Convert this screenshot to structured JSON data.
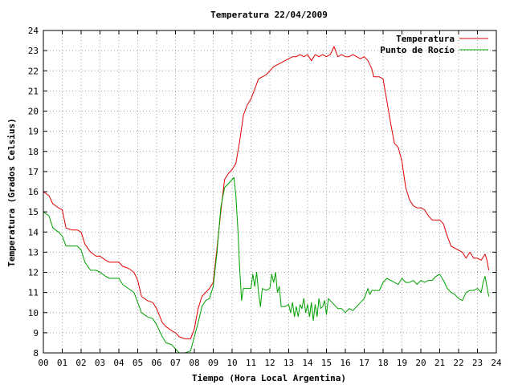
{
  "chart_data": {
    "type": "line",
    "title": "Temperatura 22/04/2009",
    "xlabel": "Tiempo (Hora Local Argentina)",
    "ylabel": "Temperatura (Grados Celsius)",
    "xlim": [
      0,
      24
    ],
    "ylim": [
      8,
      24
    ],
    "x_ticks": [
      "00",
      "01",
      "02",
      "03",
      "04",
      "05",
      "06",
      "07",
      "08",
      "09",
      "10",
      "11",
      "12",
      "13",
      "14",
      "15",
      "16",
      "17",
      "18",
      "19",
      "20",
      "21",
      "22",
      "23",
      "24"
    ],
    "y_ticks": [
      8,
      9,
      10,
      11,
      12,
      13,
      14,
      15,
      16,
      17,
      18,
      19,
      20,
      21,
      22,
      23,
      24
    ],
    "grid": true,
    "legend_position": "top-right",
    "series": [
      {
        "name": "Temperatura",
        "color": "#e00000",
        "points": [
          [
            0.0,
            16.0
          ],
          [
            0.3,
            15.8
          ],
          [
            0.5,
            15.4
          ],
          [
            0.8,
            15.2
          ],
          [
            1.0,
            15.1
          ],
          [
            1.2,
            14.2
          ],
          [
            1.5,
            14.1
          ],
          [
            1.8,
            14.1
          ],
          [
            2.0,
            14.0
          ],
          [
            2.2,
            13.4
          ],
          [
            2.5,
            13.0
          ],
          [
            2.8,
            12.8
          ],
          [
            3.0,
            12.8
          ],
          [
            3.3,
            12.6
          ],
          [
            3.5,
            12.5
          ],
          [
            3.8,
            12.5
          ],
          [
            4.0,
            12.5
          ],
          [
            4.2,
            12.3
          ],
          [
            4.5,
            12.2
          ],
          [
            4.8,
            12.0
          ],
          [
            5.0,
            11.6
          ],
          [
            5.2,
            10.8
          ],
          [
            5.5,
            10.6
          ],
          [
            5.8,
            10.5
          ],
          [
            6.0,
            10.2
          ],
          [
            6.3,
            9.5
          ],
          [
            6.5,
            9.3
          ],
          [
            6.8,
            9.1
          ],
          [
            7.0,
            9.0
          ],
          [
            7.2,
            8.8
          ],
          [
            7.5,
            8.7
          ],
          [
            7.8,
            8.7
          ],
          [
            8.0,
            9.2
          ],
          [
            8.2,
            10.2
          ],
          [
            8.4,
            10.8
          ],
          [
            8.6,
            11.0
          ],
          [
            8.8,
            11.2
          ],
          [
            9.0,
            11.5
          ],
          [
            9.2,
            13.2
          ],
          [
            9.4,
            15.0
          ],
          [
            9.6,
            16.6
          ],
          [
            9.8,
            16.9
          ],
          [
            10.0,
            17.1
          ],
          [
            10.2,
            17.4
          ],
          [
            10.4,
            18.5
          ],
          [
            10.6,
            19.8
          ],
          [
            10.8,
            20.3
          ],
          [
            11.0,
            20.6
          ],
          [
            11.2,
            21.1
          ],
          [
            11.4,
            21.6
          ],
          [
            11.6,
            21.7
          ],
          [
            11.8,
            21.8
          ],
          [
            12.0,
            22.0
          ],
          [
            12.2,
            22.2
          ],
          [
            12.4,
            22.3
          ],
          [
            12.6,
            22.4
          ],
          [
            12.8,
            22.5
          ],
          [
            13.0,
            22.6
          ],
          [
            13.2,
            22.7
          ],
          [
            13.4,
            22.7
          ],
          [
            13.6,
            22.8
          ],
          [
            13.8,
            22.7
          ],
          [
            14.0,
            22.8
          ],
          [
            14.2,
            22.5
          ],
          [
            14.4,
            22.8
          ],
          [
            14.6,
            22.7
          ],
          [
            14.8,
            22.8
          ],
          [
            15.0,
            22.7
          ],
          [
            15.2,
            22.8
          ],
          [
            15.4,
            23.2
          ],
          [
            15.6,
            22.7
          ],
          [
            15.8,
            22.8
          ],
          [
            16.0,
            22.7
          ],
          [
            16.2,
            22.7
          ],
          [
            16.4,
            22.8
          ],
          [
            16.6,
            22.7
          ],
          [
            16.8,
            22.6
          ],
          [
            17.0,
            22.7
          ],
          [
            17.2,
            22.5
          ],
          [
            17.4,
            22.1
          ],
          [
            17.5,
            21.7
          ],
          [
            17.8,
            21.7
          ],
          [
            18.0,
            21.6
          ],
          [
            18.2,
            20.5
          ],
          [
            18.4,
            19.4
          ],
          [
            18.6,
            18.4
          ],
          [
            18.8,
            18.2
          ],
          [
            19.0,
            17.5
          ],
          [
            19.2,
            16.2
          ],
          [
            19.4,
            15.6
          ],
          [
            19.6,
            15.3
          ],
          [
            19.8,
            15.2
          ],
          [
            20.0,
            15.2
          ],
          [
            20.2,
            15.1
          ],
          [
            20.4,
            14.8
          ],
          [
            20.6,
            14.6
          ],
          [
            20.8,
            14.6
          ],
          [
            21.0,
            14.6
          ],
          [
            21.2,
            14.4
          ],
          [
            21.4,
            13.8
          ],
          [
            21.6,
            13.3
          ],
          [
            21.8,
            13.2
          ],
          [
            22.0,
            13.1
          ],
          [
            22.2,
            13.0
          ],
          [
            22.4,
            12.7
          ],
          [
            22.6,
            13.0
          ],
          [
            22.8,
            12.7
          ],
          [
            23.0,
            12.7
          ],
          [
            23.2,
            12.6
          ],
          [
            23.4,
            12.9
          ],
          [
            23.5,
            12.6
          ],
          [
            23.6,
            12.1
          ]
        ]
      },
      {
        "name": "Punto de Rocío",
        "color": "#00a000",
        "points": [
          [
            0.0,
            15.0
          ],
          [
            0.3,
            14.8
          ],
          [
            0.5,
            14.2
          ],
          [
            0.8,
            14.0
          ],
          [
            1.0,
            13.8
          ],
          [
            1.2,
            13.3
          ],
          [
            1.5,
            13.3
          ],
          [
            1.8,
            13.3
          ],
          [
            2.0,
            13.1
          ],
          [
            2.2,
            12.5
          ],
          [
            2.5,
            12.1
          ],
          [
            2.8,
            12.1
          ],
          [
            3.0,
            12.0
          ],
          [
            3.3,
            11.8
          ],
          [
            3.5,
            11.7
          ],
          [
            3.8,
            11.7
          ],
          [
            4.0,
            11.7
          ],
          [
            4.2,
            11.4
          ],
          [
            4.5,
            11.2
          ],
          [
            4.8,
            11.0
          ],
          [
            5.0,
            10.5
          ],
          [
            5.2,
            10.0
          ],
          [
            5.5,
            9.8
          ],
          [
            5.8,
            9.7
          ],
          [
            6.0,
            9.4
          ],
          [
            6.3,
            8.8
          ],
          [
            6.5,
            8.5
          ],
          [
            6.8,
            8.4
          ],
          [
            7.0,
            8.2
          ],
          [
            7.2,
            8.0
          ],
          [
            7.5,
            8.0
          ],
          [
            7.8,
            8.1
          ],
          [
            8.0,
            8.8
          ],
          [
            8.2,
            9.5
          ],
          [
            8.4,
            10.3
          ],
          [
            8.6,
            10.6
          ],
          [
            8.8,
            10.7
          ],
          [
            9.0,
            11.3
          ],
          [
            9.2,
            13.0
          ],
          [
            9.4,
            15.2
          ],
          [
            9.6,
            16.2
          ],
          [
            9.8,
            16.4
          ],
          [
            10.0,
            16.6
          ],
          [
            10.1,
            16.7
          ],
          [
            10.2,
            15.8
          ],
          [
            10.3,
            14.2
          ],
          [
            10.4,
            12.2
          ],
          [
            10.5,
            10.6
          ],
          [
            10.6,
            11.2
          ],
          [
            10.8,
            11.2
          ],
          [
            11.0,
            11.2
          ],
          [
            11.1,
            11.9
          ],
          [
            11.2,
            11.3
          ],
          [
            11.3,
            12.0
          ],
          [
            11.4,
            11.0
          ],
          [
            11.5,
            10.3
          ],
          [
            11.6,
            11.2
          ],
          [
            11.8,
            11.1
          ],
          [
            12.0,
            11.2
          ],
          [
            12.1,
            11.9
          ],
          [
            12.2,
            11.5
          ],
          [
            12.3,
            12.0
          ],
          [
            12.4,
            11.0
          ],
          [
            12.5,
            11.3
          ],
          [
            12.6,
            10.3
          ],
          [
            12.8,
            10.3
          ],
          [
            13.0,
            10.4
          ],
          [
            13.1,
            10.0
          ],
          [
            13.2,
            10.5
          ],
          [
            13.3,
            9.8
          ],
          [
            13.4,
            10.3
          ],
          [
            13.5,
            9.8
          ],
          [
            13.6,
            10.4
          ],
          [
            13.7,
            10.2
          ],
          [
            13.8,
            10.7
          ],
          [
            13.9,
            10.0
          ],
          [
            14.0,
            10.4
          ],
          [
            14.1,
            9.8
          ],
          [
            14.2,
            10.5
          ],
          [
            14.3,
            9.6
          ],
          [
            14.4,
            10.4
          ],
          [
            14.5,
            9.8
          ],
          [
            14.6,
            10.7
          ],
          [
            14.7,
            10.2
          ],
          [
            14.8,
            10.3
          ],
          [
            14.9,
            10.6
          ],
          [
            15.0,
            9.9
          ],
          [
            15.1,
            10.7
          ],
          [
            15.2,
            10.6
          ],
          [
            15.4,
            10.4
          ],
          [
            15.6,
            10.2
          ],
          [
            15.8,
            10.2
          ],
          [
            16.0,
            10.0
          ],
          [
            16.2,
            10.2
          ],
          [
            16.4,
            10.1
          ],
          [
            16.6,
            10.3
          ],
          [
            16.8,
            10.5
          ],
          [
            17.0,
            10.7
          ],
          [
            17.2,
            11.2
          ],
          [
            17.3,
            10.9
          ],
          [
            17.4,
            11.1
          ],
          [
            17.6,
            11.1
          ],
          [
            17.8,
            11.1
          ],
          [
            18.0,
            11.5
          ],
          [
            18.2,
            11.7
          ],
          [
            18.4,
            11.6
          ],
          [
            18.6,
            11.5
          ],
          [
            18.8,
            11.4
          ],
          [
            19.0,
            11.7
          ],
          [
            19.2,
            11.5
          ],
          [
            19.4,
            11.5
          ],
          [
            19.6,
            11.6
          ],
          [
            19.8,
            11.4
          ],
          [
            20.0,
            11.6
          ],
          [
            20.2,
            11.5
          ],
          [
            20.4,
            11.6
          ],
          [
            20.6,
            11.6
          ],
          [
            20.8,
            11.8
          ],
          [
            21.0,
            11.9
          ],
          [
            21.2,
            11.6
          ],
          [
            21.4,
            11.2
          ],
          [
            21.6,
            11.0
          ],
          [
            21.8,
            10.9
          ],
          [
            22.0,
            10.7
          ],
          [
            22.2,
            10.6
          ],
          [
            22.4,
            11.0
          ],
          [
            22.6,
            11.1
          ],
          [
            22.8,
            11.1
          ],
          [
            23.0,
            11.2
          ],
          [
            23.2,
            11.0
          ],
          [
            23.3,
            11.5
          ],
          [
            23.4,
            11.8
          ],
          [
            23.5,
            11.3
          ],
          [
            23.6,
            10.8
          ]
        ]
      }
    ]
  }
}
